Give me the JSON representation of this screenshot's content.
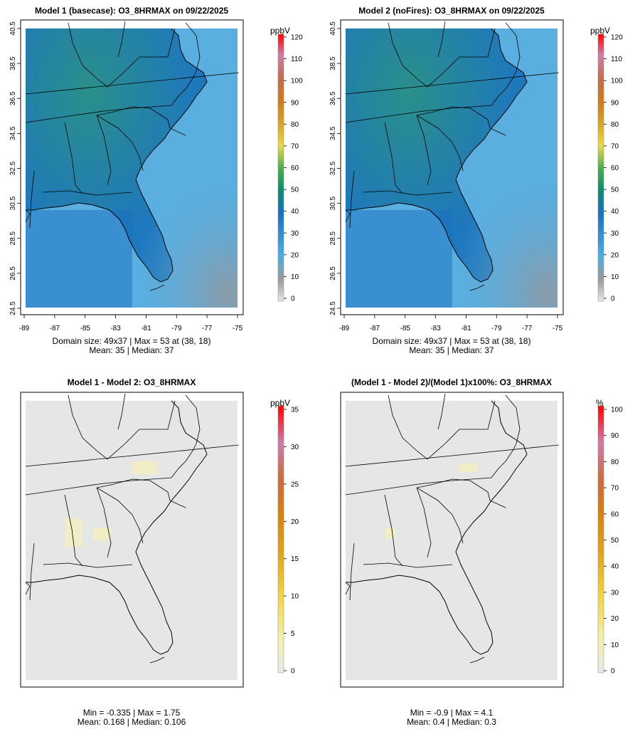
{
  "panels": [
    {
      "id": "model1",
      "title": "Model 1 (basecase): O3_8HRMAX on 09/22/2025",
      "stat_line1": "Domain size: 49x37 | Max = 53 at (38, 18)",
      "stat_line2": "Mean: 35 |  Median: 37",
      "unit": "ppbV"
    },
    {
      "id": "model2",
      "title": "Model 2 (noFires): O3_8HRMAX on 09/22/2025",
      "stat_line1": "Domain size: 49x37 | Max = 53 at (38, 18)",
      "stat_line2": "Mean: 35 |  Median: 37",
      "unit": "ppbV"
    },
    {
      "id": "diff",
      "title": "Model 1 - Model 2: O3_8HRMAX",
      "stat_line1": "Min = -0.335 | Max = 1.75",
      "stat_line2": "Mean: 0.168 |  Median: 0.106",
      "unit": "ppbV"
    },
    {
      "id": "pctdiff",
      "title": "(Model 1 - Model 2)/(Model 1)x100%: O3_8HRMAX",
      "stat_line1": "Min = -0.9 | Max = 4.1",
      "stat_line2": "Mean: 0.4 |  Median: 0.3",
      "unit": "%"
    }
  ],
  "axes": {
    "lon_ticks": [
      "-89",
      "-87",
      "-85",
      "-83",
      "-81",
      "-79",
      "-77",
      "-75"
    ],
    "lat_ticks": [
      "24.5",
      "26.5",
      "28.5",
      "30.5",
      "32.5",
      "34.5",
      "36.5",
      "38.5",
      "40.5"
    ]
  },
  "colorbars": {
    "ozone": {
      "ticks": [
        "0",
        "10",
        "20",
        "30",
        "40",
        "50",
        "60",
        "70",
        "80",
        "90",
        "100",
        "110",
        "120"
      ]
    },
    "diff": {
      "ticks": [
        "0",
        "5",
        "10",
        "15",
        "20",
        "25",
        "30",
        "35"
      ]
    },
    "pct": {
      "ticks": [
        "0",
        "10",
        "20",
        "30",
        "40",
        "50",
        "60",
        "70",
        "80",
        "90",
        "100"
      ]
    }
  },
  "colors": {
    "ozone_field": "#1f77bd",
    "ocean_field": "#5aaee0",
    "diff_field": "#e6e6e6"
  }
}
